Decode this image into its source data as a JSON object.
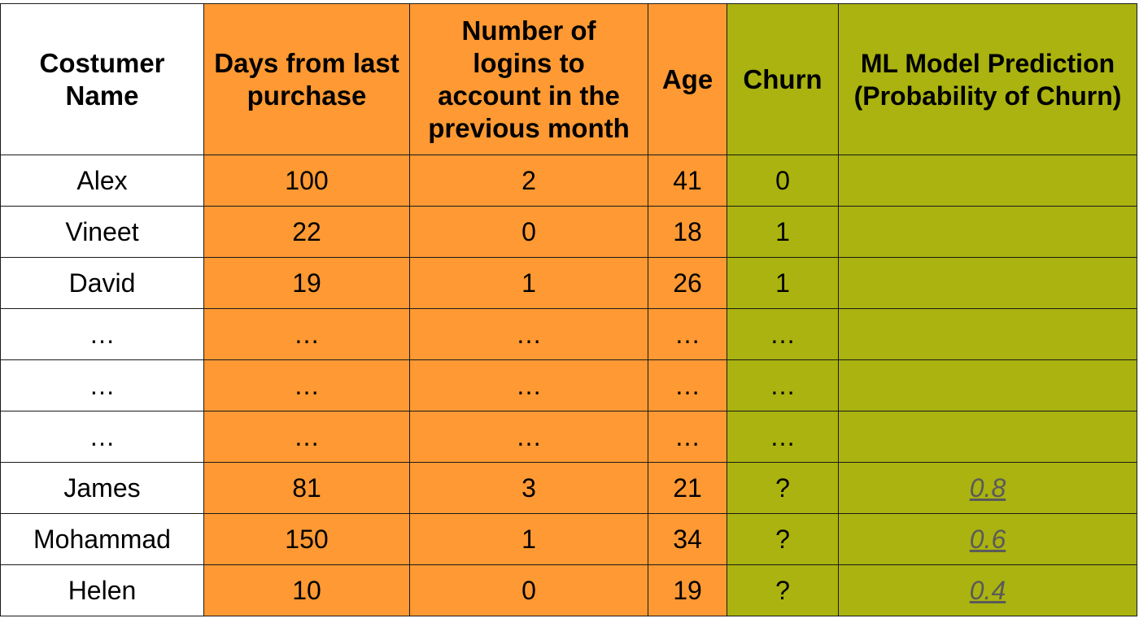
{
  "table": {
    "headers": [
      "Costumer\nName",
      "Days from last\npurchase",
      "Number of\nlogins to\naccount in the\nprevious month",
      "Age",
      "Churn",
      "ML Model Prediction\n(Probability of Churn)"
    ],
    "rows": [
      [
        "Alex",
        "100",
        "2",
        "41",
        "0",
        ""
      ],
      [
        "Vineet",
        "22",
        "0",
        "18",
        "1",
        ""
      ],
      [
        "David",
        "19",
        "1",
        "26",
        "1",
        ""
      ],
      [
        "…",
        "…",
        "…",
        "…",
        "…",
        ""
      ],
      [
        "…",
        "…",
        "…",
        "…",
        "…",
        ""
      ],
      [
        "…",
        "…",
        "…",
        "…",
        "…",
        ""
      ],
      [
        "James",
        "81",
        "3",
        "21",
        "?",
        "0.8"
      ],
      [
        "Mohammad",
        "150",
        "1",
        "34",
        "?",
        "0.6"
      ],
      [
        "Helen",
        "10",
        "0",
        "19",
        "?",
        "0.4"
      ]
    ]
  },
  "colors": {
    "name_column": "#ffffff",
    "feature_columns": "#ff9933",
    "target_columns": "#aab30f",
    "prediction_text": "#5a5a5a"
  }
}
